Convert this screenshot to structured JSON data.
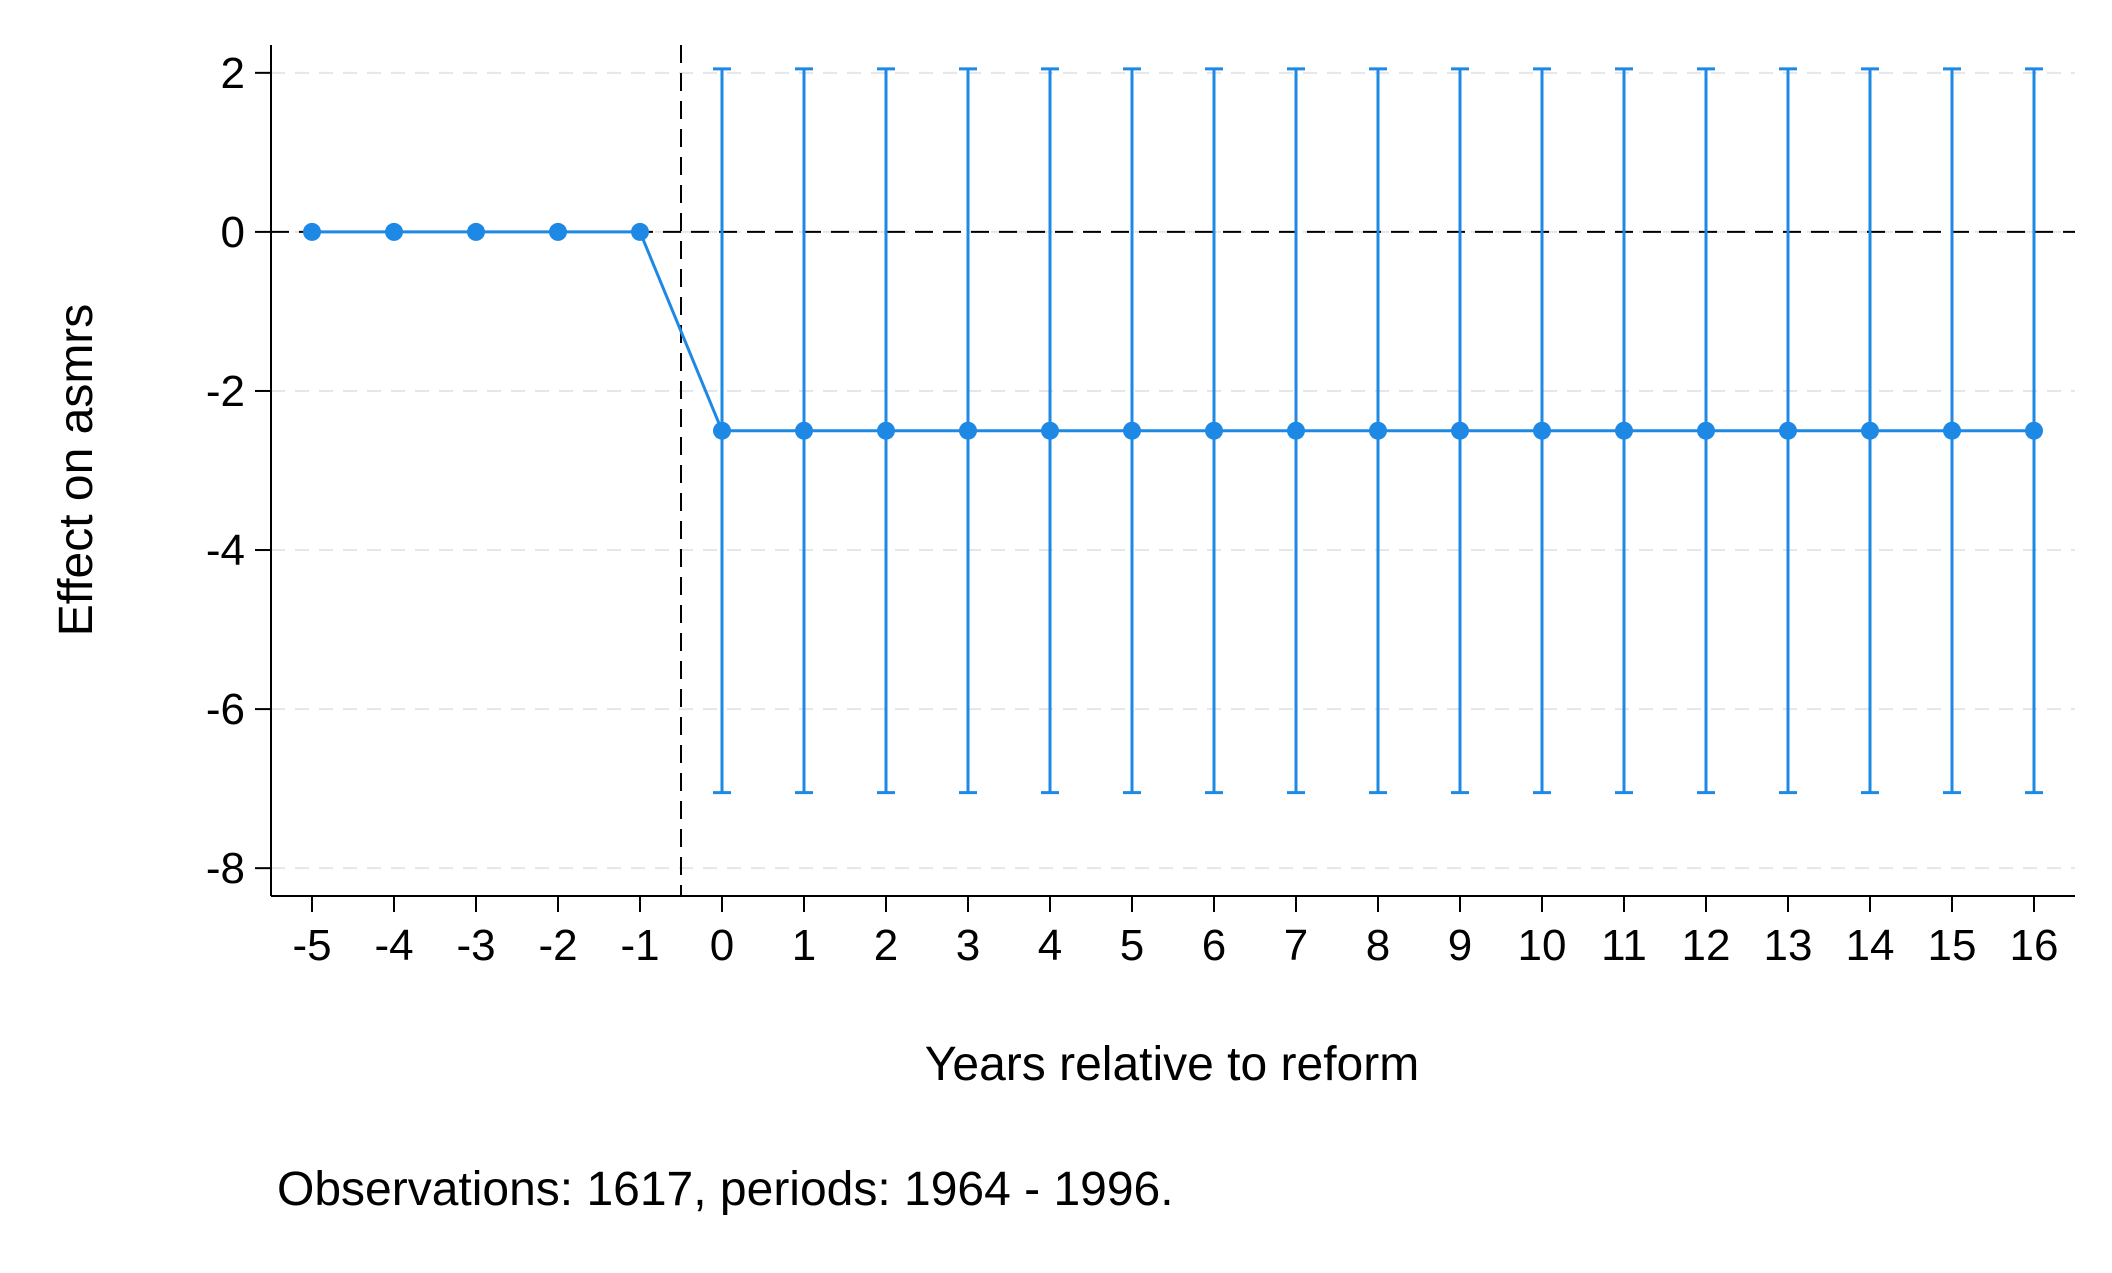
{
  "chart_data": {
    "type": "line",
    "title": "",
    "xlabel": "Years relative to reform",
    "ylabel": "Effect on asmrs",
    "note": "Observations: 1617, periods: 1964 - 1996.",
    "x_ticks": [
      "-5",
      "-4",
      "-3",
      "-2",
      "-1",
      "0",
      "1",
      "2",
      "3",
      "4",
      "5",
      "6",
      "7",
      "8",
      "9",
      "10",
      "11",
      "12",
      "13",
      "14",
      "15",
      "16"
    ],
    "y_ticks": [
      "2",
      "0",
      "-2",
      "-4",
      "-6",
      "-8"
    ],
    "xlim": [
      -5.5,
      16.5
    ],
    "ylim": [
      -8.35,
      2.35
    ],
    "grid": "horizontal dashed, light gray",
    "reference_lines": {
      "horizontal_y": 0,
      "vertical_x": -0.5
    },
    "series": [
      {
        "color": "#1e88e5",
        "x": [
          -5,
          -4,
          -3,
          -2,
          -1,
          0,
          1,
          2,
          3,
          4,
          5,
          6,
          7,
          8,
          9,
          10,
          11,
          12,
          13,
          14,
          15,
          16
        ],
        "y": [
          0,
          0,
          0,
          0,
          0,
          -2.5,
          -2.5,
          -2.5,
          -2.5,
          -2.5,
          -2.5,
          -2.5,
          -2.5,
          -2.5,
          -2.5,
          -2.5,
          -2.5,
          -2.5,
          -2.5,
          -2.5,
          -2.5,
          -2.5
        ],
        "ci_low": [
          null,
          null,
          null,
          null,
          null,
          -7.05,
          -7.05,
          -7.05,
          -7.05,
          -7.05,
          -7.05,
          -7.05,
          -7.05,
          -7.05,
          -7.05,
          -7.05,
          -7.05,
          -7.05,
          -7.05,
          -7.05,
          -7.05,
          -7.05
        ],
        "ci_high": [
          null,
          null,
          null,
          null,
          null,
          2.05,
          2.05,
          2.05,
          2.05,
          2.05,
          2.05,
          2.05,
          2.05,
          2.05,
          2.05,
          2.05,
          2.05,
          2.05,
          2.05,
          2.05,
          2.05,
          2.05
        ]
      }
    ]
  }
}
